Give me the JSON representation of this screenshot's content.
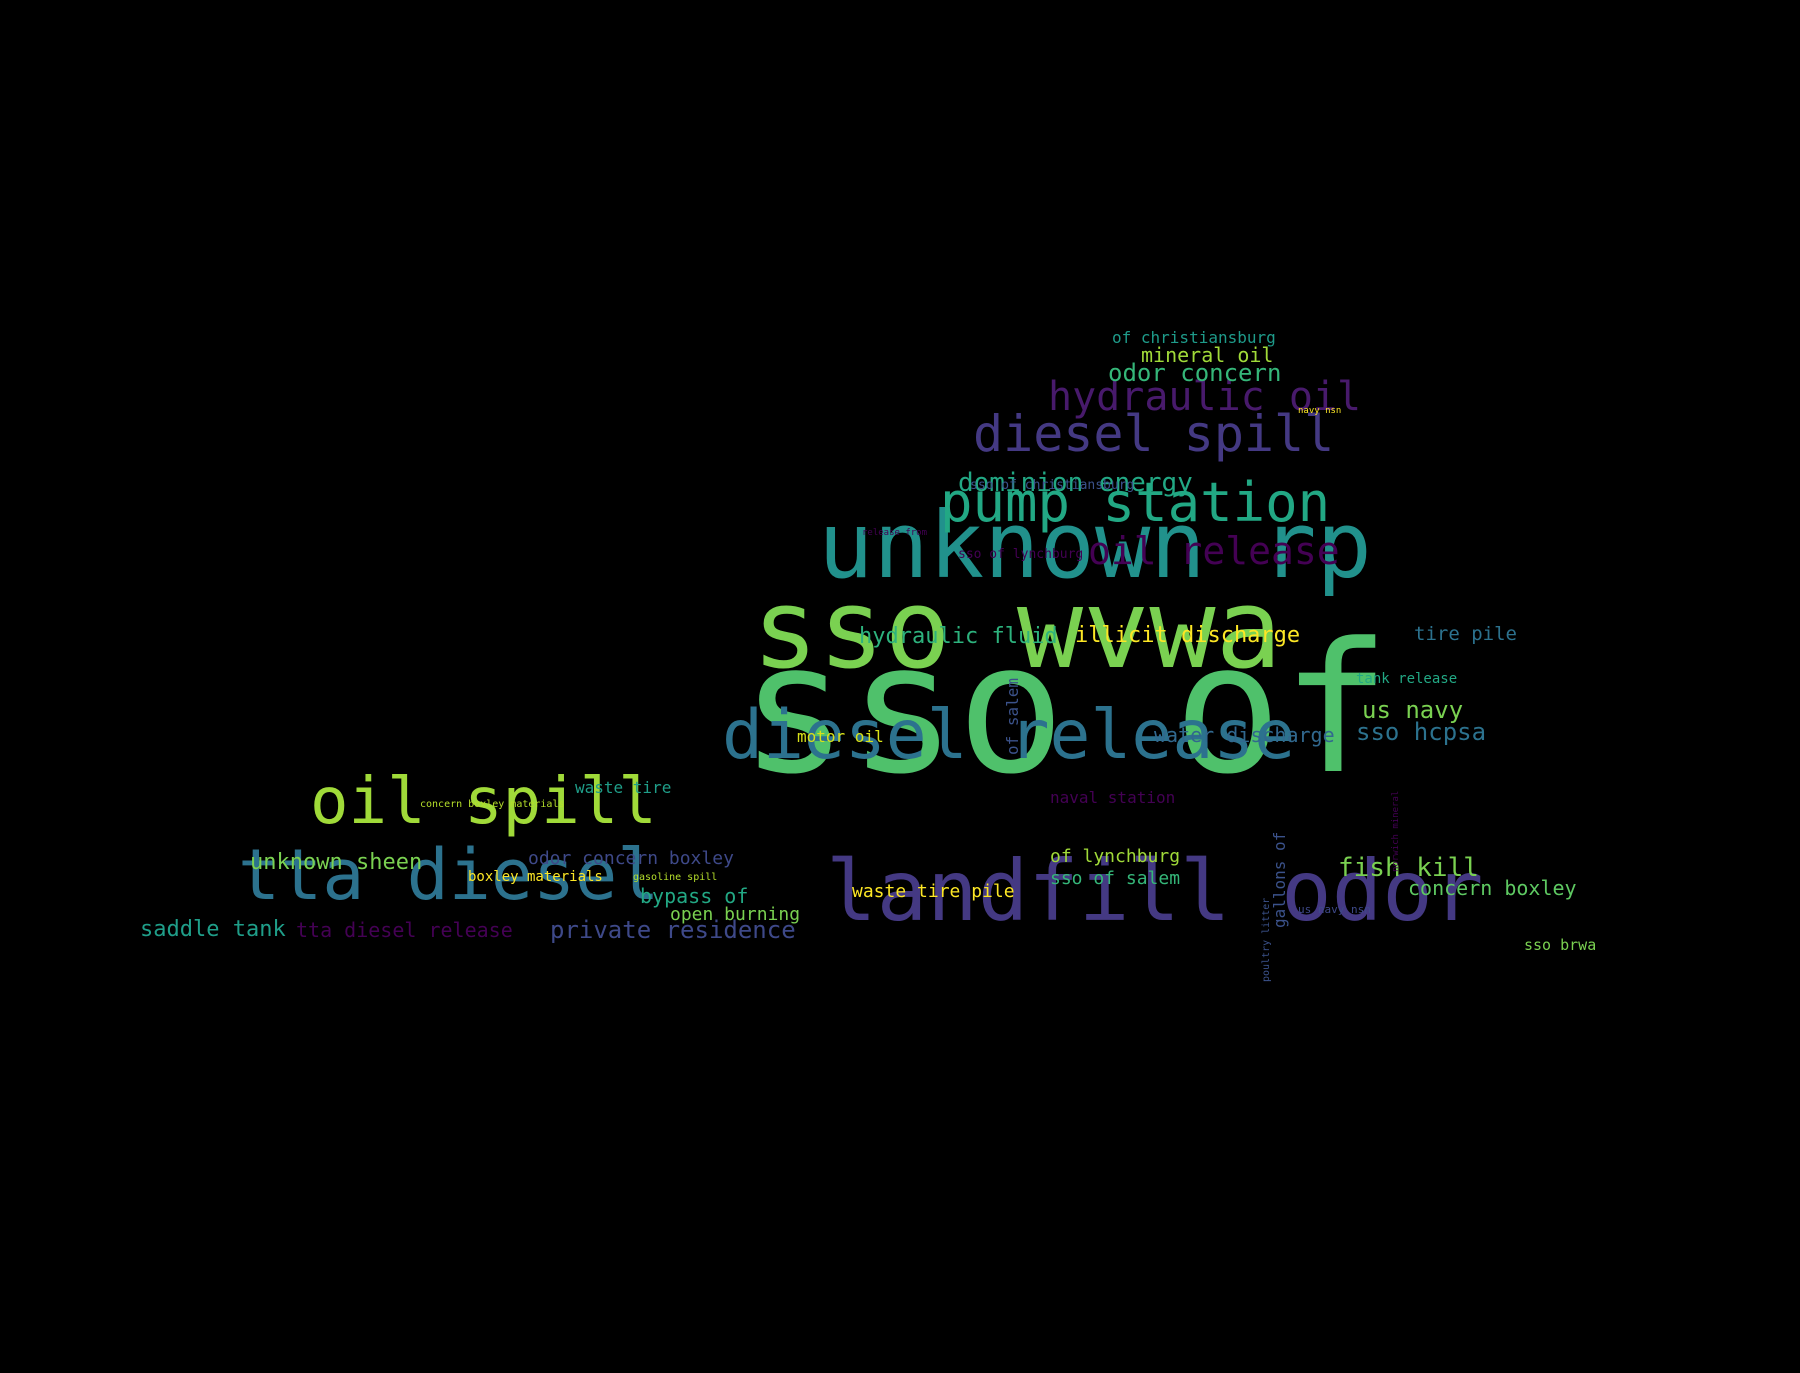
{
  "words": [
    {
      "text": "sso of",
      "color": "#4fc16b"
    },
    {
      "text": "sso wvwa",
      "color": "#7ad151"
    },
    {
      "text": "unknown rp",
      "color": "#21918c"
    },
    {
      "text": "landfill odor",
      "color": "#443983"
    },
    {
      "text": "diesel release",
      "color": "#2c728e"
    },
    {
      "text": "pump station",
      "color": "#22a884"
    },
    {
      "text": "oil spill",
      "color": "#a0da39"
    },
    {
      "text": "tta diesel",
      "color": "#2c728e"
    },
    {
      "text": "diesel spill",
      "color": "#443983"
    },
    {
      "text": "hydraulic oil",
      "color": "#481a6c"
    },
    {
      "text": "oil release",
      "color": "#440154"
    },
    {
      "text": "dominion energy",
      "color": "#22a884"
    },
    {
      "text": "odor concern",
      "color": "#35b779"
    },
    {
      "text": "mineral oil",
      "color": "#a0da39"
    },
    {
      "text": "of christiansburg",
      "color": "#1e9b8a"
    },
    {
      "text": "navy nsn",
      "color": "#fde725"
    },
    {
      "text": "sso of christiansburg",
      "color": "#3b528b"
    },
    {
      "text": "release from",
      "color": "#440154"
    },
    {
      "text": "sso of lynchburg",
      "color": "#440154"
    },
    {
      "text": "hydraulic fluid",
      "color": "#2db27d"
    },
    {
      "text": "illicit discharge",
      "color": "#fde725"
    },
    {
      "text": "tire pile",
      "color": "#2c728e"
    },
    {
      "text": "tank release",
      "color": "#22a884"
    },
    {
      "text": "us navy",
      "color": "#7ad151"
    },
    {
      "text": "of salem",
      "color": "#3b528b"
    },
    {
      "text": "motor oil",
      "color": "#d8e219"
    },
    {
      "text": "water discharge",
      "color": "#31688e"
    },
    {
      "text": "sso hcpsa",
      "color": "#2c728e"
    },
    {
      "text": "waste tire",
      "color": "#1f9e89"
    },
    {
      "text": "concern boxley materials",
      "color": "#b5de2b"
    },
    {
      "text": "naval station",
      "color": "#440154"
    },
    {
      "text": "unknown sheen",
      "color": "#7ad151"
    },
    {
      "text": "odor concern boxley",
      "color": "#3e4989"
    },
    {
      "text": "boxley materials",
      "color": "#fde725"
    },
    {
      "text": "gasoline spill",
      "color": "#b5de2b"
    },
    {
      "text": "of lynchburg",
      "color": "#a0da39"
    },
    {
      "text": "gallons of",
      "color": "#3b528b"
    },
    {
      "text": "fish kill",
      "color": "#7ad151"
    },
    {
      "text": "bypass of",
      "color": "#22a884"
    },
    {
      "text": "waste tire pile",
      "color": "#fde725"
    },
    {
      "text": "sso of salem",
      "color": "#35b779"
    },
    {
      "text": "concern boxley",
      "color": "#5ec962"
    },
    {
      "text": "open burning",
      "color": "#7ad151"
    },
    {
      "text": "us navy nsn",
      "color": "#3e4989"
    },
    {
      "text": "poultry litter",
      "color": "#3b528b"
    },
    {
      "text": "saddle tank",
      "color": "#1f9e89"
    },
    {
      "text": "tta diesel release",
      "color": "#440154"
    },
    {
      "text": "private residence",
      "color": "#3e4989"
    },
    {
      "text": "sso brwa",
      "color": "#7ad151"
    },
    {
      "text": "norwich mineral",
      "color": "#440154"
    }
  ]
}
